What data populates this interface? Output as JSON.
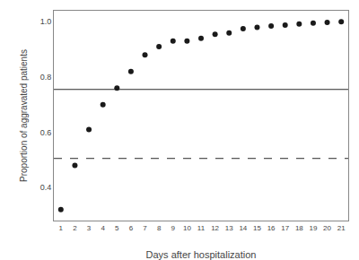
{
  "chart_data": {
    "type": "scatter",
    "x": [
      1,
      2,
      3,
      4,
      5,
      6,
      7,
      8,
      9,
      10,
      11,
      12,
      13,
      14,
      15,
      16,
      17,
      18,
      19,
      20,
      21
    ],
    "values": [
      0.32,
      0.48,
      0.61,
      0.7,
      0.76,
      0.82,
      0.88,
      0.91,
      0.93,
      0.93,
      0.94,
      0.955,
      0.96,
      0.975,
      0.98,
      0.985,
      0.988,
      0.992,
      0.995,
      0.998,
      1.0
    ],
    "color": "#1a1a1a",
    "marker": "circle",
    "hlines": [
      {
        "y": 0.755,
        "line_style": "solid",
        "color": "#2a2a2a"
      },
      {
        "y": 0.505,
        "line_style": "dashed",
        "color": "#2a2a2a"
      }
    ],
    "xlabel": "Days after hospitalization",
    "ylabel": "Proportion of aggravated patients",
    "xlim": [
      0.5,
      21.5
    ],
    "ylim": [
      0.28,
      1.04
    ],
    "xticks": [
      1,
      2,
      3,
      4,
      5,
      6,
      7,
      8,
      9,
      10,
      11,
      12,
      13,
      14,
      15,
      16,
      17,
      18,
      19,
      20,
      21
    ],
    "yticks": [
      0.4,
      0.6,
      0.8,
      {
        "value": 1.0,
        "label": "1.0"
      }
    ],
    "grid": false
  }
}
